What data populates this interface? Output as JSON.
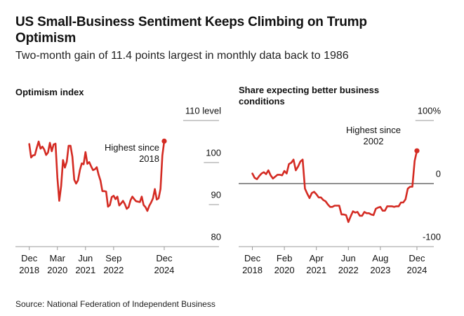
{
  "title": "US Small-Business Sentiment Keeps Climbing on Trump Optimism",
  "subtitle": "Two-month gain of 11.4 points largest in monthly data back to 1986",
  "source": "Source: National Federation of Independent Business",
  "chart_data": [
    {
      "type": "line",
      "title": "Optimism index",
      "color": "#d42b23",
      "x": [
        "2018-12",
        "2019-01",
        "2019-02",
        "2019-03",
        "2019-04",
        "2019-05",
        "2019-06",
        "2019-07",
        "2019-08",
        "2019-09",
        "2019-10",
        "2019-11",
        "2019-12",
        "2020-01",
        "2020-02",
        "2020-03",
        "2020-04",
        "2020-05",
        "2020-06",
        "2020-07",
        "2020-08",
        "2020-09",
        "2020-10",
        "2020-11",
        "2020-12",
        "2021-01",
        "2021-02",
        "2021-03",
        "2021-04",
        "2021-05",
        "2021-06",
        "2021-07",
        "2021-08",
        "2021-09",
        "2021-10",
        "2021-11",
        "2021-12",
        "2022-01",
        "2022-02",
        "2022-03",
        "2022-04",
        "2022-05",
        "2022-06",
        "2022-07",
        "2022-08",
        "2022-09",
        "2022-10",
        "2022-11",
        "2022-12",
        "2023-01",
        "2023-02",
        "2023-03",
        "2023-04",
        "2023-05",
        "2023-06",
        "2023-07",
        "2023-08",
        "2023-09",
        "2023-10",
        "2023-11",
        "2023-12",
        "2024-01",
        "2024-02",
        "2024-03",
        "2024-04",
        "2024-05",
        "2024-06",
        "2024-07",
        "2024-08",
        "2024-09",
        "2024-10",
        "2024-11",
        "2024-12"
      ],
      "values": [
        104.4,
        101.2,
        101.7,
        101.8,
        103.5,
        105.0,
        103.3,
        103.8,
        103.1,
        101.8,
        102.4,
        104.7,
        102.7,
        104.3,
        104.5,
        96.4,
        90.9,
        94.4,
        100.6,
        98.8,
        100.2,
        104.0,
        104.0,
        101.4,
        95.9,
        95.0,
        95.8,
        98.2,
        99.8,
        99.6,
        102.5,
        99.7,
        100.1,
        99.1,
        98.2,
        98.4,
        98.9,
        97.1,
        95.7,
        93.2,
        93.2,
        93.1,
        89.5,
        89.9,
        91.8,
        92.1,
        91.3,
        91.9,
        89.8,
        90.3,
        90.9,
        90.1,
        89.0,
        89.4,
        91.0,
        91.9,
        91.3,
        90.8,
        90.7,
        90.6,
        91.9,
        89.9,
        89.4,
        88.5,
        89.7,
        90.5,
        91.5,
        93.7,
        91.2,
        91.5,
        93.7,
        101.7,
        105.1
      ],
      "xlim": [
        "2018-05",
        "2025-09"
      ],
      "xticks": [
        {
          "value": "2018-12",
          "label": "Dec 2018"
        },
        {
          "value": "2020-03",
          "label": "Mar 2020"
        },
        {
          "value": "2021-06",
          "label": "Jun 2021"
        },
        {
          "value": "2022-09",
          "label": "Sep 2022"
        },
        {
          "value": "2024-12",
          "label": "Dec 2024"
        }
      ],
      "ylim": [
        80,
        112
      ],
      "yticks": [
        80,
        90,
        100,
        {
          "value": 110,
          "label": "110 level"
        }
      ],
      "annotation": "Highest since 2018"
    },
    {
      "type": "line",
      "title": "Share expecting better business conditions",
      "color": "#d42b23",
      "x": [
        "2018-12",
        "2019-01",
        "2019-02",
        "2019-03",
        "2019-04",
        "2019-05",
        "2019-06",
        "2019-07",
        "2019-08",
        "2019-09",
        "2019-10",
        "2019-11",
        "2019-12",
        "2020-01",
        "2020-02",
        "2020-03",
        "2020-04",
        "2020-05",
        "2020-06",
        "2020-07",
        "2020-08",
        "2020-09",
        "2020-10",
        "2020-11",
        "2020-12",
        "2021-01",
        "2021-02",
        "2021-03",
        "2021-04",
        "2021-05",
        "2021-06",
        "2021-07",
        "2021-08",
        "2021-09",
        "2021-10",
        "2021-11",
        "2021-12",
        "2022-01",
        "2022-02",
        "2022-03",
        "2022-04",
        "2022-05",
        "2022-06",
        "2022-07",
        "2022-08",
        "2022-09",
        "2022-10",
        "2022-11",
        "2022-12",
        "2023-01",
        "2023-02",
        "2023-03",
        "2023-04",
        "2023-05",
        "2023-06",
        "2023-07",
        "2023-08",
        "2023-09",
        "2023-10",
        "2023-11",
        "2023-12",
        "2024-01",
        "2024-02",
        "2024-03",
        "2024-04",
        "2024-05",
        "2024-06",
        "2024-07",
        "2024-08",
        "2024-09",
        "2024-10",
        "2024-11",
        "2024-12"
      ],
      "values": [
        16,
        9,
        7,
        12,
        16,
        18,
        15,
        21,
        13,
        8,
        11,
        14,
        14,
        13,
        20,
        16,
        31,
        33,
        38,
        21,
        27,
        35,
        38,
        -8,
        -16,
        -23,
        -15,
        -13,
        -17,
        -22,
        -22,
        -26,
        -28,
        -33,
        -37,
        -37,
        -35,
        -35,
        -35,
        -49,
        -49,
        -50,
        -61,
        -52,
        -44,
        -46,
        -45,
        -51,
        -51,
        -45,
        -47,
        -47,
        -49,
        -50,
        -40,
        -38,
        -37,
        -43,
        -43,
        -36,
        -36,
        -36,
        -37,
        -36,
        -36,
        -30,
        -30,
        -25,
        -8,
        -5,
        -5,
        36,
        52
      ],
      "xlim": [
        "2018-06",
        "2025-08"
      ],
      "xticks": [
        {
          "value": "2018-12",
          "label": "Dec 2018"
        },
        {
          "value": "2020-02",
          "label": "Feb 2020"
        },
        {
          "value": "2021-04",
          "label": "Apr 2021"
        },
        {
          "value": "2022-06",
          "label": "Jun 2022"
        },
        {
          "value": "2023-08",
          "label": "Aug 2023"
        },
        {
          "value": "2024-12",
          "label": "Dec 2024"
        }
      ],
      "ylim": [
        -100,
        110
      ],
      "yticks": [
        -100,
        0,
        {
          "value": 100,
          "label": "100%"
        }
      ],
      "annotation": "Highest since 2002"
    }
  ]
}
